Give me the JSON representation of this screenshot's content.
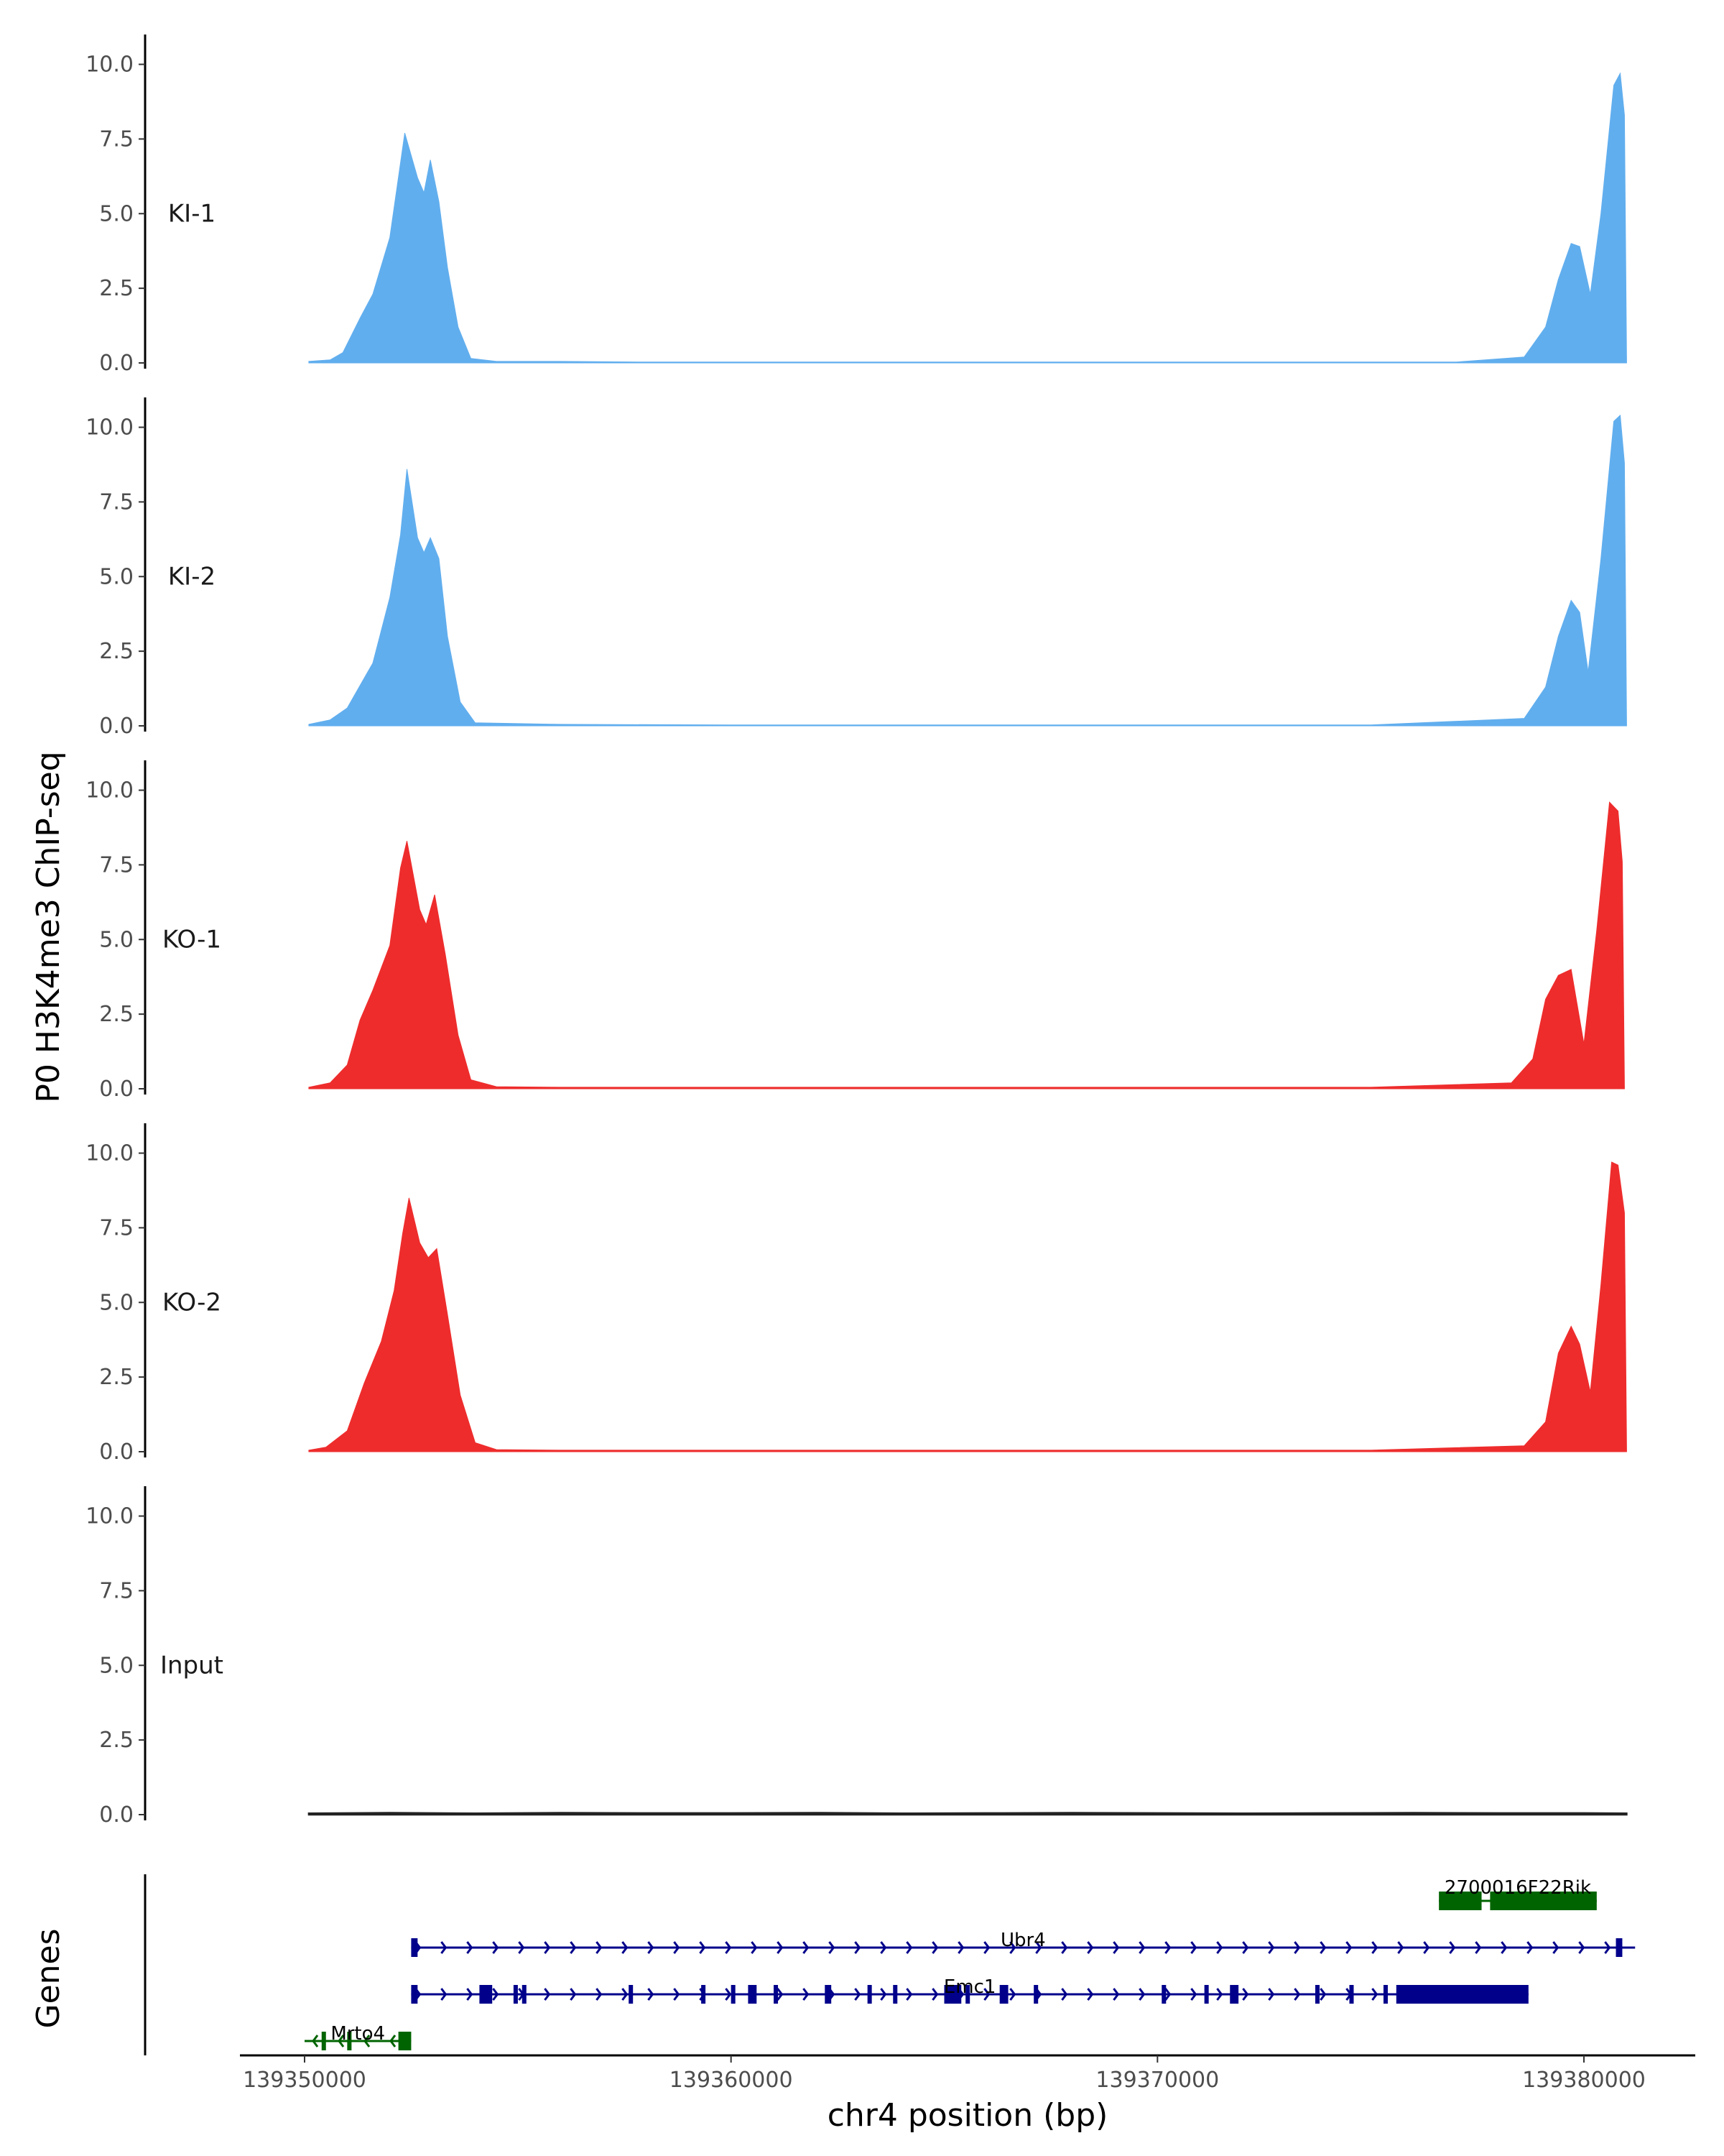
{
  "chart_data": {
    "type": "area",
    "ylabel": "P0 H3K4me3 ChIP-seq",
    "xlabel": "chr4 position (bp)",
    "ylim": [
      0,
      11
    ],
    "xlim": [
      139348500,
      139382700
    ],
    "y_ticks": [
      "0.0",
      "2.5",
      "5.0",
      "7.5",
      "10.0"
    ],
    "y_tick_values": [
      0,
      2.5,
      5,
      7.5,
      10
    ],
    "x_ticks": [
      "139350000",
      "139360000",
      "139370000",
      "139380000"
    ],
    "x_tick_values": [
      139350000,
      139360000,
      139370000,
      139380000
    ],
    "colors": {
      "KI": "#61aeee",
      "KO": "#ee2c2c",
      "Input": "#222222",
      "gene_plus": "#00008b",
      "gene_minus": "#006400"
    },
    "series": [
      {
        "name": "KI-1",
        "color": "#61aeee",
        "points": [
          [
            139350100,
            0.05
          ],
          [
            139350600,
            0.1
          ],
          [
            139350900,
            0.35
          ],
          [
            139351300,
            1.5
          ],
          [
            139351600,
            2.3
          ],
          [
            139352000,
            4.2
          ],
          [
            139352200,
            6.2
          ],
          [
            139352350,
            7.7
          ],
          [
            139352650,
            6.2
          ],
          [
            139352800,
            5.7
          ],
          [
            139352950,
            6.8
          ],
          [
            139353150,
            5.4
          ],
          [
            139353350,
            3.2
          ],
          [
            139353600,
            1.2
          ],
          [
            139353900,
            0.15
          ],
          [
            139354500,
            0.05
          ],
          [
            139356000,
            0.05
          ],
          [
            139358000,
            0.03
          ],
          [
            139362000,
            0.03
          ],
          [
            139367000,
            0.03
          ],
          [
            139372000,
            0.03
          ],
          [
            139377000,
            0.03
          ],
          [
            139378600,
            0.2
          ],
          [
            139379100,
            1.2
          ],
          [
            139379400,
            2.8
          ],
          [
            139379700,
            4.0
          ],
          [
            139379900,
            3.9
          ],
          [
            139380150,
            2.3
          ],
          [
            139380400,
            5.0
          ],
          [
            139380700,
            9.3
          ],
          [
            139380850,
            9.7
          ],
          [
            139380950,
            8.3
          ],
          [
            139381000,
            0.0
          ]
        ]
      },
      {
        "name": "KI-2",
        "color": "#61aeee",
        "points": [
          [
            139350100,
            0.05
          ],
          [
            139350600,
            0.2
          ],
          [
            139351000,
            0.6
          ],
          [
            139351400,
            1.6
          ],
          [
            139351600,
            2.1
          ],
          [
            139352000,
            4.3
          ],
          [
            139352250,
            6.4
          ],
          [
            139352400,
            8.6
          ],
          [
            139352650,
            6.3
          ],
          [
            139352800,
            5.8
          ],
          [
            139352950,
            6.3
          ],
          [
            139353150,
            5.6
          ],
          [
            139353350,
            3.0
          ],
          [
            139353650,
            0.8
          ],
          [
            139354000,
            0.1
          ],
          [
            139356000,
            0.05
          ],
          [
            139360000,
            0.03
          ],
          [
            139365000,
            0.03
          ],
          [
            139370000,
            0.03
          ],
          [
            139375000,
            0.03
          ],
          [
            139378600,
            0.25
          ],
          [
            139379100,
            1.3
          ],
          [
            139379400,
            3.0
          ],
          [
            139379700,
            4.2
          ],
          [
            139379900,
            3.8
          ],
          [
            139380100,
            1.8
          ],
          [
            139380400,
            5.6
          ],
          [
            139380700,
            10.2
          ],
          [
            139380850,
            10.4
          ],
          [
            139380950,
            8.8
          ],
          [
            139381000,
            0.0
          ]
        ]
      },
      {
        "name": "KO-1",
        "color": "#ee2c2c",
        "points": [
          [
            139350100,
            0.05
          ],
          [
            139350600,
            0.2
          ],
          [
            139351000,
            0.8
          ],
          [
            139351300,
            2.3
          ],
          [
            139351600,
            3.3
          ],
          [
            139352000,
            4.8
          ],
          [
            139352250,
            7.4
          ],
          [
            139352400,
            8.3
          ],
          [
            139352700,
            6.0
          ],
          [
            139352850,
            5.5
          ],
          [
            139353050,
            6.5
          ],
          [
            139353300,
            4.5
          ],
          [
            139353600,
            1.8
          ],
          [
            139353900,
            0.3
          ],
          [
            139354500,
            0.07
          ],
          [
            139356000,
            0.05
          ],
          [
            139360000,
            0.05
          ],
          [
            139365000,
            0.05
          ],
          [
            139370000,
            0.05
          ],
          [
            139375000,
            0.05
          ],
          [
            139378300,
            0.2
          ],
          [
            139378800,
            1.0
          ],
          [
            139379100,
            3.0
          ],
          [
            139379400,
            3.8
          ],
          [
            139379700,
            4.0
          ],
          [
            139380000,
            1.5
          ],
          [
            139380300,
            5.3
          ],
          [
            139380600,
            9.6
          ],
          [
            139380800,
            9.3
          ],
          [
            139380900,
            7.6
          ],
          [
            139380950,
            0.0
          ]
        ]
      },
      {
        "name": "KO-2",
        "color": "#ee2c2c",
        "points": [
          [
            139350100,
            0.05
          ],
          [
            139350500,
            0.15
          ],
          [
            139351000,
            0.7
          ],
          [
            139351400,
            2.3
          ],
          [
            139351800,
            3.7
          ],
          [
            139352100,
            5.4
          ],
          [
            139352300,
            7.3
          ],
          [
            139352450,
            8.5
          ],
          [
            139352700,
            7.0
          ],
          [
            139352900,
            6.5
          ],
          [
            139353100,
            6.8
          ],
          [
            139353350,
            4.6
          ],
          [
            139353650,
            1.9
          ],
          [
            139354000,
            0.3
          ],
          [
            139354500,
            0.07
          ],
          [
            139356000,
            0.05
          ],
          [
            139360000,
            0.05
          ],
          [
            139365000,
            0.05
          ],
          [
            139370000,
            0.05
          ],
          [
            139375000,
            0.05
          ],
          [
            139378600,
            0.2
          ],
          [
            139379100,
            1.0
          ],
          [
            139379400,
            3.3
          ],
          [
            139379700,
            4.2
          ],
          [
            139379900,
            3.6
          ],
          [
            139380150,
            2.0
          ],
          [
            139380400,
            5.6
          ],
          [
            139380650,
            9.7
          ],
          [
            139380800,
            9.6
          ],
          [
            139380950,
            8.0
          ],
          [
            139381000,
            0.0
          ]
        ]
      },
      {
        "name": "Input",
        "color": "#222222",
        "points": [
          [
            139350100,
            0.04
          ],
          [
            139352000,
            0.06
          ],
          [
            139354000,
            0.04
          ],
          [
            139356000,
            0.06
          ],
          [
            139358000,
            0.05
          ],
          [
            139360000,
            0.05
          ],
          [
            139362000,
            0.06
          ],
          [
            139364000,
            0.04
          ],
          [
            139366000,
            0.05
          ],
          [
            139368000,
            0.06
          ],
          [
            139370000,
            0.05
          ],
          [
            139372000,
            0.04
          ],
          [
            139374000,
            0.05
          ],
          [
            139376000,
            0.06
          ],
          [
            139378000,
            0.05
          ],
          [
            139380000,
            0.05
          ],
          [
            139381000,
            0.04
          ]
        ]
      }
    ],
    "genes_track_label": "Genes",
    "genes": [
      {
        "name": "2700016F22Rik",
        "strand": "-",
        "start": 139376600,
        "end": 139380300,
        "row": 1,
        "exons": [
          [
            139376600,
            139377600
          ],
          [
            139377800,
            139380300
          ]
        ]
      },
      {
        "name": "Ubr4",
        "strand": "+",
        "start": 139352500,
        "end": 139381200,
        "row": 2,
        "exons": [
          [
            139352500,
            139352650
          ],
          [
            139380750,
            139380900
          ]
        ]
      },
      {
        "name": "Emc1",
        "strand": "+",
        "start": 139352500,
        "end": 139378700,
        "row": 3,
        "exons": [
          [
            139352500,
            139352650
          ],
          [
            139354100,
            139354400
          ],
          [
            139354900,
            139355000
          ],
          [
            139355100,
            139355200
          ],
          [
            139357600,
            139357700
          ],
          [
            139359300,
            139359400
          ],
          [
            139360000,
            139360100
          ],
          [
            139360400,
            139360600
          ],
          [
            139361000,
            139361100
          ],
          [
            139362200,
            139362350
          ],
          [
            139363200,
            139363300
          ],
          [
            139363800,
            139363900
          ],
          [
            139365000,
            139365400
          ],
          [
            139365500,
            139365600
          ],
          [
            139366300,
            139366500
          ],
          [
            139367100,
            139367200
          ],
          [
            139370100,
            139370200
          ],
          [
            139371100,
            139371200
          ],
          [
            139371700,
            139371900
          ],
          [
            139373700,
            139373800
          ],
          [
            139374500,
            139374600
          ],
          [
            139375300,
            139375400
          ],
          [
            139375600,
            139378700
          ]
        ]
      },
      {
        "name": "Mrto4",
        "strand": "-",
        "start": 139350000,
        "end": 139352500,
        "row": 4,
        "exons": [
          [
            139350400,
            139350500
          ],
          [
            139351000,
            139351100
          ],
          [
            139352200,
            139352500
          ]
        ]
      }
    ]
  }
}
